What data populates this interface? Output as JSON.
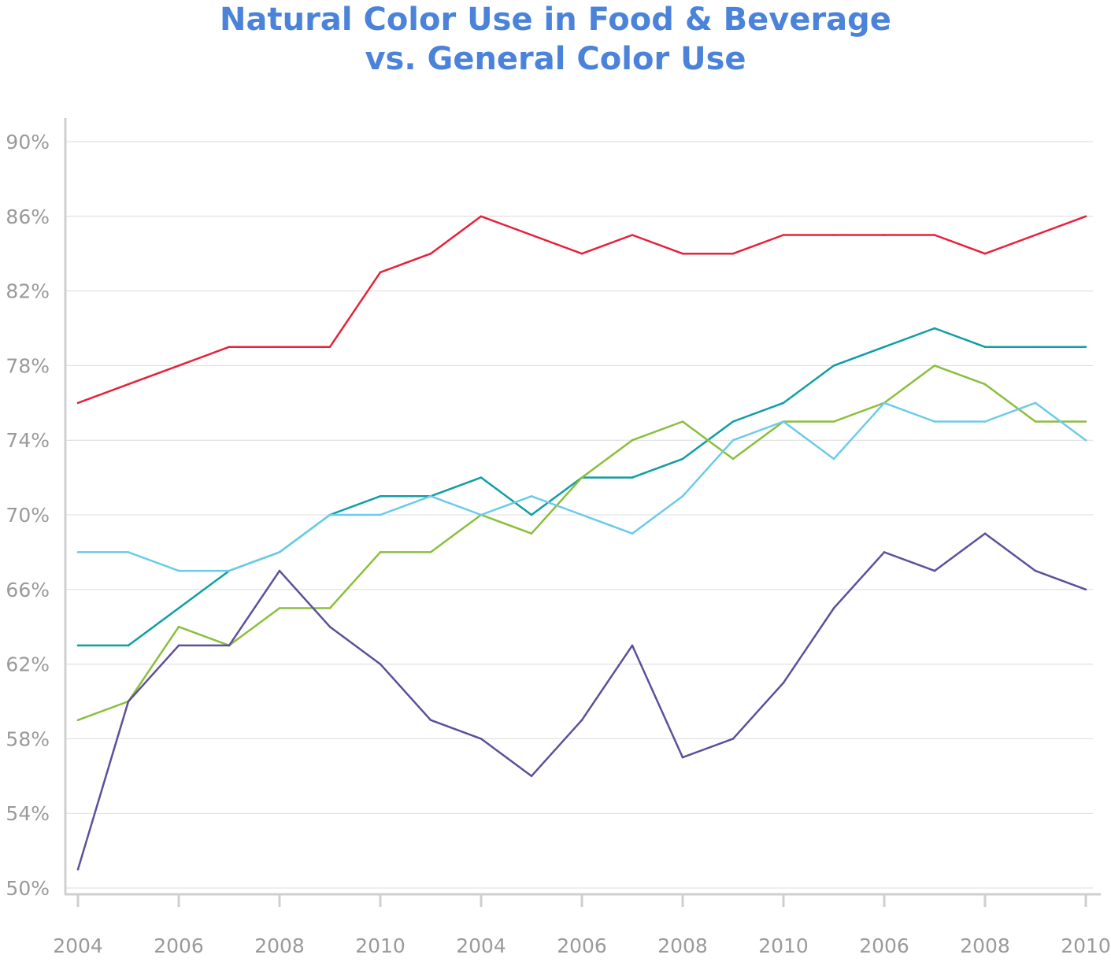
{
  "chart_data": {
    "type": "line",
    "title": [
      "Natural Color Use in Food & Beverage",
      "vs. General Color Use"
    ],
    "xlabel": "",
    "ylabel": "",
    "x_tick_labels": [
      "2004",
      "2006",
      "2008",
      "2010",
      "2004",
      "2006",
      "2008",
      "2010",
      "2006",
      "2008",
      "2010"
    ],
    "point_count": 21,
    "ylim": [
      50,
      90
    ],
    "y_ticks": [
      50,
      54,
      58,
      62,
      66,
      70,
      74,
      78,
      82,
      86,
      90
    ],
    "y_tick_format": "%",
    "grid": "horizontal",
    "legend": "none",
    "series": [
      {
        "color": "#e8203a",
        "values": [
          76,
          77,
          78,
          79,
          79,
          79,
          83,
          84,
          86,
          85,
          84,
          85,
          84,
          84,
          85,
          85,
          85,
          85,
          84,
          85,
          86
        ]
      },
      {
        "color": "#0e9ea4",
        "values": [
          63,
          63,
          65,
          67,
          68,
          70,
          71,
          71,
          72,
          70,
          72,
          72,
          73,
          75,
          76,
          78,
          79,
          80,
          79,
          79,
          79
        ]
      },
      {
        "color": "#8abf3c",
        "values": [
          59,
          60,
          64,
          63,
          65,
          65,
          68,
          68,
          70,
          69,
          72,
          74,
          75,
          73,
          75,
          75,
          76,
          78,
          77,
          75,
          75
        ]
      },
      {
        "color": "#6ccbe8",
        "values": [
          68,
          68,
          67,
          67,
          68,
          70,
          70,
          71,
          70,
          71,
          70,
          69,
          71,
          74,
          75,
          73,
          76,
          75,
          75,
          76,
          74
        ]
      },
      {
        "color": "#5d4f9b",
        "values": [
          51,
          60,
          63,
          63,
          67,
          64,
          62,
          59,
          58,
          56,
          59,
          63,
          57,
          58,
          61,
          65,
          68,
          67,
          69,
          67,
          66
        ]
      }
    ]
  }
}
